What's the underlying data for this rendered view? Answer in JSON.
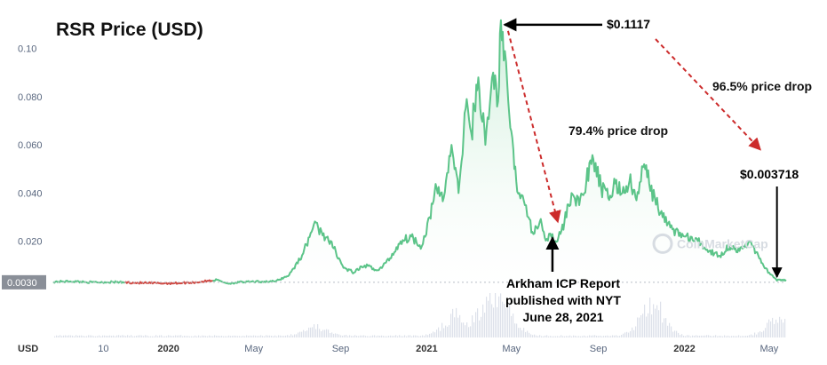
{
  "chart_data": {
    "type": "line",
    "title": "RSR Price (USD)",
    "y_axis_unit": "USD",
    "ylim": [
      0,
      0.112
    ],
    "yticks": [
      {
        "label": "0.10",
        "value": 0.1
      },
      {
        "label": "0.080",
        "value": 0.08
      },
      {
        "label": "0.060",
        "value": 0.06
      },
      {
        "label": "0.040",
        "value": 0.04
      },
      {
        "label": "0.020",
        "value": 0.02
      }
    ],
    "current_price_badge": {
      "label": "0.0030",
      "value": 0.003
    },
    "xlim": [
      "2019-07-22",
      "2022-05-25"
    ],
    "xticks": [
      {
        "label": "10",
        "date": "2019-10-01",
        "bold": false
      },
      {
        "label": "2020",
        "date": "2020-01-01",
        "bold": true
      },
      {
        "label": "May",
        "date": "2020-05-01",
        "bold": false
      },
      {
        "label": "Sep",
        "date": "2020-09-01",
        "bold": false
      },
      {
        "label": "2021",
        "date": "2021-01-01",
        "bold": true
      },
      {
        "label": "May",
        "date": "2021-05-01",
        "bold": false
      },
      {
        "label": "Sep",
        "date": "2021-09-01",
        "bold": false
      },
      {
        "label": "2022",
        "date": "2022-01-01",
        "bold": true
      },
      {
        "label": "May",
        "date": "2022-05-01",
        "bold": false
      }
    ],
    "grid": false,
    "series": [
      {
        "color_up": "#5cc489",
        "color_down": "#cf4a44",
        "x": [
          "2019-07-22",
          "2019-08-15",
          "2019-09-15",
          "2019-10-15",
          "2019-11-15",
          "2019-12-01",
          "2019-12-20",
          "2020-01-10",
          "2020-02-10",
          "2020-03-10",
          "2020-03-25",
          "2020-04-10",
          "2020-05-01",
          "2020-06-01",
          "2020-06-20",
          "2020-07-10",
          "2020-07-25",
          "2020-08-05",
          "2020-08-15",
          "2020-08-25",
          "2020-09-05",
          "2020-09-20",
          "2020-10-05",
          "2020-10-25",
          "2020-11-10",
          "2020-11-25",
          "2020-12-10",
          "2020-12-25",
          "2021-01-05",
          "2021-01-15",
          "2021-01-25",
          "2021-02-05",
          "2021-02-15",
          "2021-02-25",
          "2021-03-05",
          "2021-03-15",
          "2021-03-25",
          "2021-04-05",
          "2021-04-12",
          "2021-04-16",
          "2021-04-20",
          "2021-04-25",
          "2021-05-05",
          "2021-05-12",
          "2021-05-20",
          "2021-05-25",
          "2021-06-01",
          "2021-06-10",
          "2021-06-20",
          "2021-06-28",
          "2021-07-05",
          "2021-07-15",
          "2021-07-25",
          "2021-08-05",
          "2021-08-15",
          "2021-08-25",
          "2021-09-05",
          "2021-09-15",
          "2021-09-25",
          "2021-10-05",
          "2021-10-15",
          "2021-10-25",
          "2021-11-05",
          "2021-11-12",
          "2021-11-20",
          "2021-12-01",
          "2021-12-15",
          "2022-01-01",
          "2022-01-20",
          "2022-02-05",
          "2022-02-20",
          "2022-03-05",
          "2022-03-20",
          "2022-04-05",
          "2022-04-20",
          "2022-05-01",
          "2022-05-12",
          "2022-05-25"
        ],
        "y": [
          0.0032,
          0.0034,
          0.003,
          0.0031,
          0.0028,
          0.0027,
          0.0026,
          0.0026,
          0.003,
          0.004,
          0.0025,
          0.003,
          0.0032,
          0.0034,
          0.006,
          0.015,
          0.027,
          0.024,
          0.02,
          0.016,
          0.009,
          0.007,
          0.01,
          0.008,
          0.013,
          0.02,
          0.022,
          0.018,
          0.03,
          0.042,
          0.038,
          0.06,
          0.04,
          0.075,
          0.065,
          0.088,
          0.06,
          0.09,
          0.078,
          0.1117,
          0.095,
          0.085,
          0.05,
          0.04,
          0.035,
          0.03,
          0.023,
          0.028,
          0.021,
          0.023,
          0.02,
          0.028,
          0.04,
          0.035,
          0.045,
          0.054,
          0.042,
          0.038,
          0.044,
          0.04,
          0.045,
          0.037,
          0.052,
          0.044,
          0.038,
          0.03,
          0.025,
          0.022,
          0.02,
          0.016,
          0.014,
          0.018,
          0.016,
          0.02,
          0.011,
          0.007,
          0.0037,
          0.004
        ],
        "down_range": [
          "2019-11-01",
          "2020-03-05"
        ]
      }
    ],
    "volume": {
      "description": "volume bars",
      "peaks": [
        {
          "date": "2020-07-25",
          "value": 0.25
        },
        {
          "date": "2021-02-10",
          "value": 0.55
        },
        {
          "date": "2021-04-01",
          "value": 0.85
        },
        {
          "date": "2021-04-20",
          "value": 0.7
        },
        {
          "date": "2021-11-15",
          "value": 0.95
        },
        {
          "date": "2022-05-12",
          "value": 0.45
        }
      ]
    },
    "annotations": [
      {
        "id": "peak",
        "text": "$0.1117",
        "date": "2021-04-16",
        "value": 0.1117
      },
      {
        "id": "drop1",
        "text": "79.4% price drop"
      },
      {
        "id": "drop2",
        "text": "96.5% price drop"
      },
      {
        "id": "low",
        "text": "$0.003718",
        "date": "2022-05-12",
        "value": 0.003718
      },
      {
        "id": "report",
        "lines": [
          "Arkham ICP Report",
          "published with NYT",
          "June 28, 2021"
        ],
        "date": "2021-06-28",
        "value": 0.023
      }
    ],
    "watermark": "CoinMarketCap",
    "colors": {
      "line": "#5cc489",
      "line_down": "#cf4a44",
      "area": "#dff3e6",
      "arrow_black": "#000000",
      "arrow_red": "#cc2b2b",
      "volume": "#dde1ea",
      "badge_bg": "#8a8f98"
    }
  }
}
